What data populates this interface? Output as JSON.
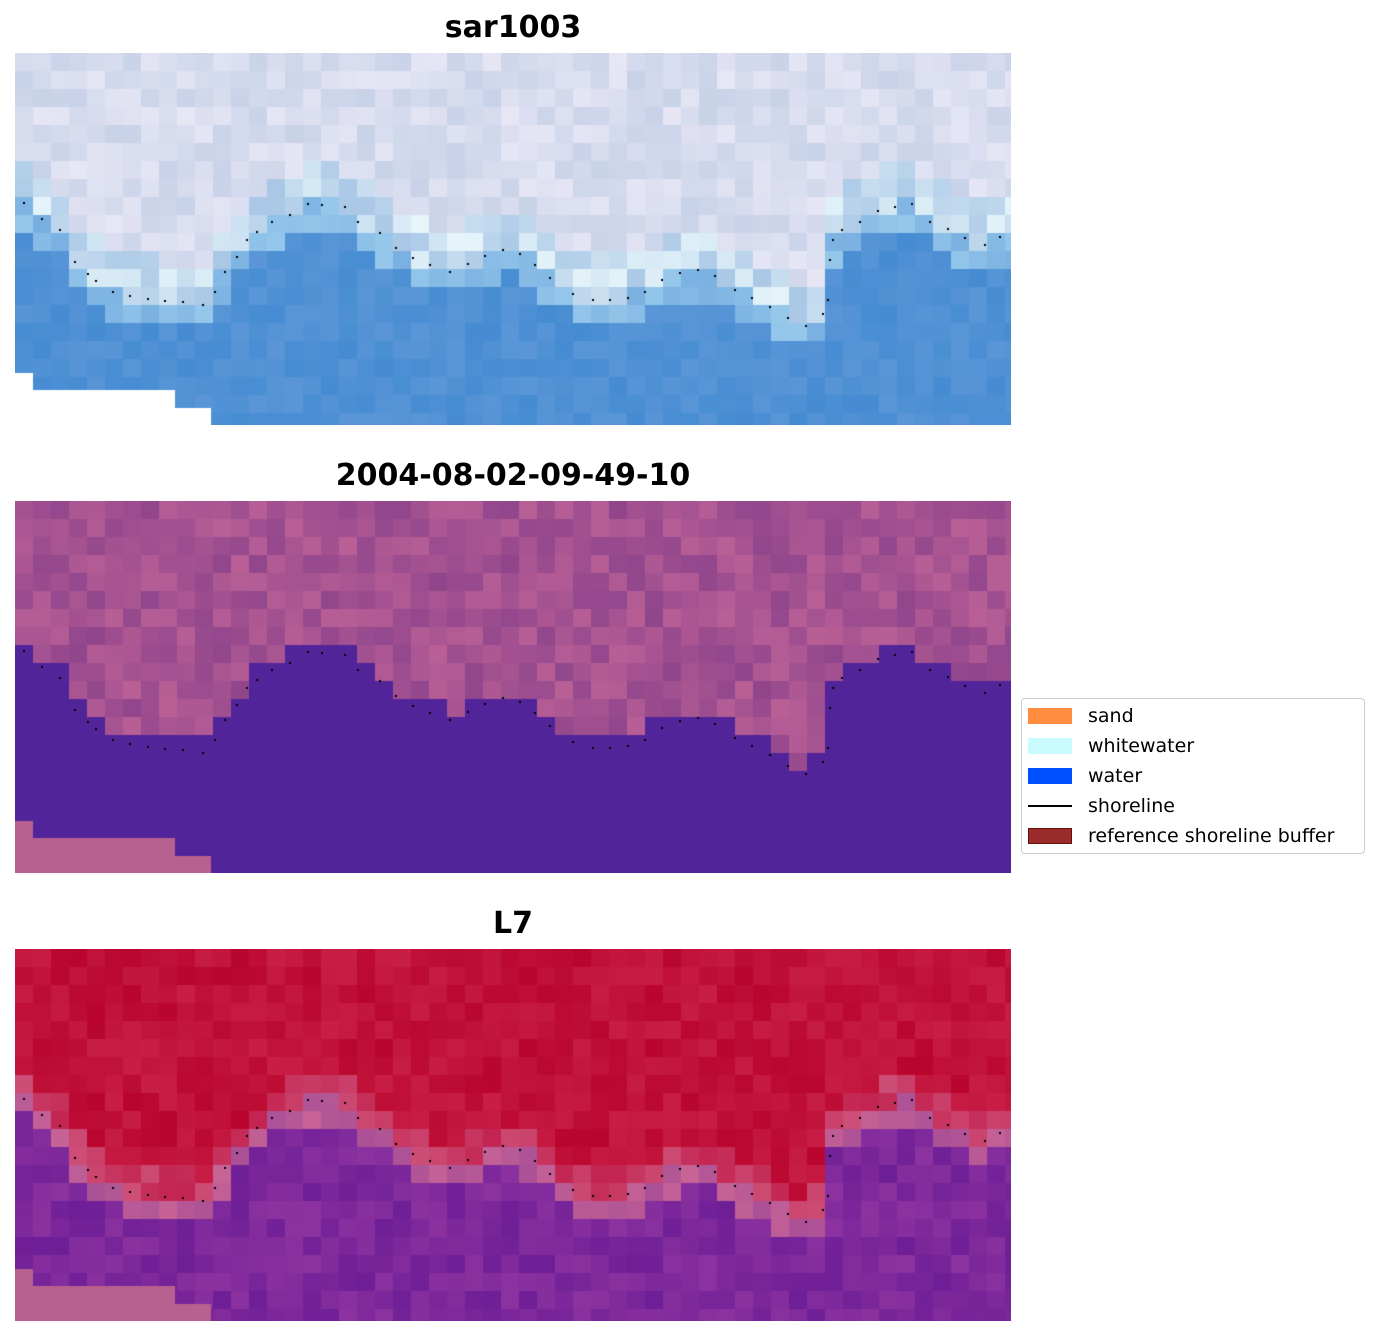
{
  "chart_data": {
    "type": "heatmap",
    "panels": [
      {
        "title": "sar1003",
        "kind": "rgb-image"
      },
      {
        "title": "2004-08-02-09-49-10",
        "kind": "classified-image"
      },
      {
        "title": "L7",
        "kind": "index-image"
      }
    ],
    "legend": {
      "placement": "center-right",
      "entries": [
        {
          "label": "sand",
          "color": "#ff8c3f"
        },
        {
          "label": "whitewater",
          "color": "#c8fcfc"
        },
        {
          "label": "water",
          "color": "#0050ff"
        },
        {
          "label": "shoreline",
          "color": "#000000"
        },
        {
          "label": "reference shoreline buffer",
          "color": "#9a2b2b"
        }
      ]
    },
    "axes": "off"
  }
}
